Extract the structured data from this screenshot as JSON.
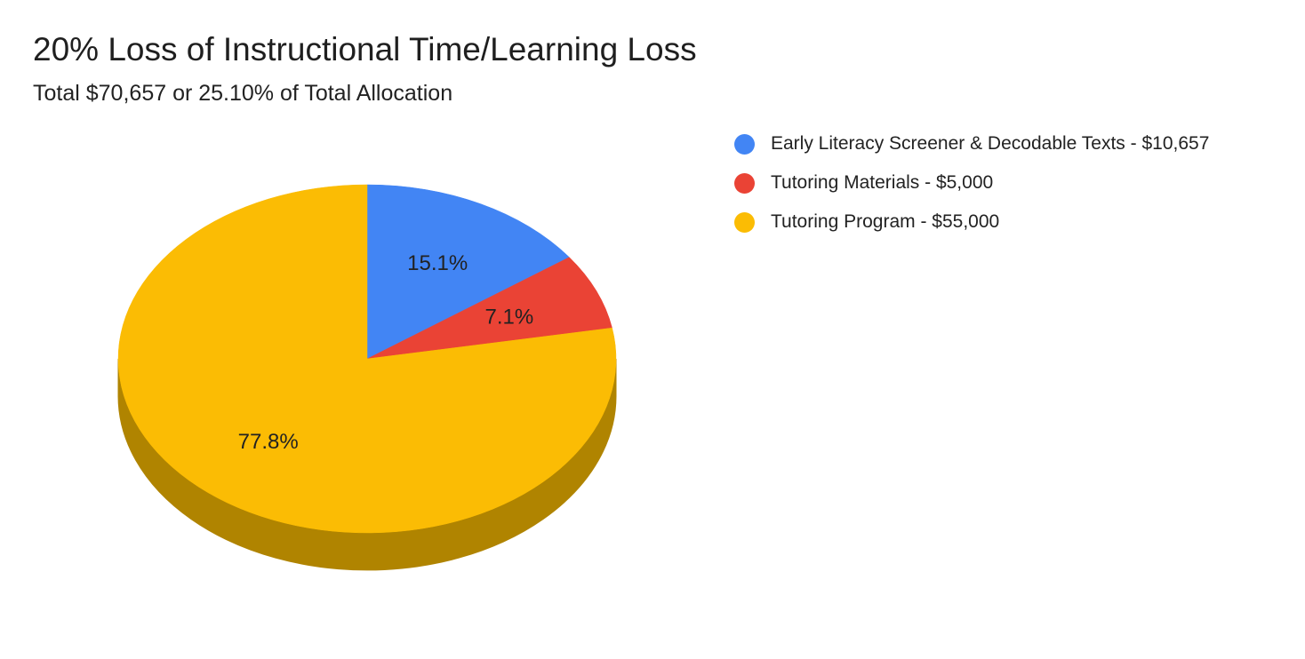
{
  "chart_data": {
    "type": "pie",
    "title": "20% Loss of Instructional Time/Learning Loss",
    "subtitle": "Total $70,657 or 25.10% of Total Allocation",
    "legend_position": "right",
    "three_d": true,
    "slices": [
      {
        "label": "Early Literacy Screener & Decodable Texts - $10,657",
        "value": 10657,
        "percent_label": "15.1%",
        "color": "#4285f4",
        "side_color": "#2b5aa8"
      },
      {
        "label": "Tutoring Materials - $5,000",
        "value": 5000,
        "percent_label": "7.1%",
        "color": "#ea4335",
        "side_color": "#a32e24"
      },
      {
        "label": "Tutoring Program - $55,000",
        "value": 55000,
        "percent_label": "77.8%",
        "color": "#fbbc04",
        "side_color": "#b08400"
      }
    ]
  }
}
